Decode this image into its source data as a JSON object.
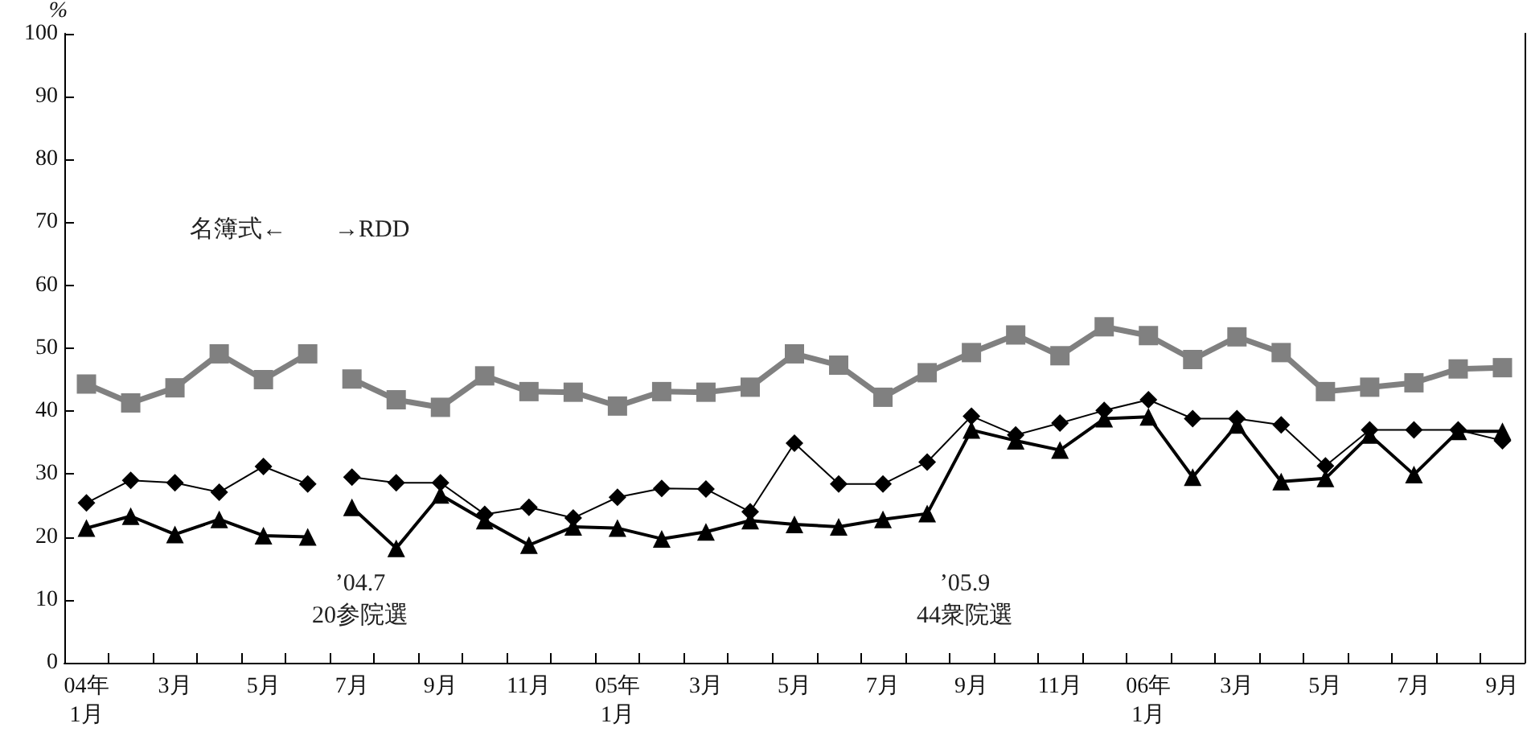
{
  "chart_data": {
    "type": "line",
    "ylabel": "%",
    "ylim": [
      0,
      100
    ],
    "yticks": [
      0,
      10,
      20,
      30,
      40,
      50,
      60,
      70,
      80,
      90,
      100
    ],
    "categories": [
      "04年\n1月",
      null,
      "3月",
      null,
      "5月",
      null,
      "7月",
      null,
      "9月",
      null,
      "11月",
      null,
      "05年\n1月",
      null,
      "3月",
      null,
      "5月",
      null,
      "7月",
      null,
      "9月",
      null,
      "11月",
      null,
      "06年\n1月",
      null,
      "3月",
      null,
      "5月",
      null,
      "7月",
      null,
      "9月"
    ],
    "series": [
      {
        "color": "#808080",
        "marker": "square",
        "values": [
          44.3,
          41.3,
          43.7,
          49.1,
          45.0,
          49.1,
          null,
          null,
          null,
          null,
          null,
          null,
          null,
          null,
          null,
          null,
          null,
          null,
          null,
          null,
          null,
          null,
          null,
          null,
          null,
          null,
          null,
          null,
          null,
          null,
          null,
          null,
          null
        ]
      },
      {
        "color": "#808080",
        "marker": "square",
        "values": [
          null,
          null,
          null,
          null,
          null,
          null,
          45.1,
          41.8,
          40.6,
          45.6,
          43.1,
          43.0,
          40.8,
          43.1,
          43.0,
          43.8,
          49.1,
          47.3,
          42.2,
          46.1,
          49.3,
          52.1,
          48.8,
          53.4,
          52.0,
          48.2,
          51.8,
          49.3,
          43.1,
          43.8,
          44.5,
          46.7,
          46.9
        ]
      },
      {
        "color": "#000000",
        "marker": "diamond",
        "values": [
          25.4,
          29.0,
          28.6,
          27.1,
          31.2,
          28.4,
          null,
          null,
          null,
          null,
          null,
          null,
          null,
          null,
          null,
          null,
          null,
          null,
          null,
          null,
          null,
          null,
          null,
          null,
          null,
          null,
          null,
          null,
          null,
          null,
          null,
          null,
          null
        ]
      },
      {
        "color": "#000000",
        "marker": "diamond",
        "values": [
          null,
          null,
          null,
          null,
          null,
          null,
          29.5,
          28.6,
          28.6,
          23.6,
          24.7,
          23.0,
          26.3,
          27.7,
          27.6,
          24.0,
          34.9,
          28.4,
          28.4,
          31.9,
          39.2,
          36.2,
          38.1,
          40.1,
          41.8,
          38.8,
          38.8,
          37.8,
          31.3,
          37.0,
          37.0,
          37.0,
          35.3
        ]
      },
      {
        "color": "#000000",
        "marker": "triangle",
        "values": [
          21.4,
          23.3,
          20.4,
          22.8,
          20.2,
          20.0,
          null,
          null,
          null,
          null,
          null,
          null,
          null,
          null,
          null,
          null,
          null,
          null,
          null,
          null,
          null,
          null,
          null,
          null,
          null,
          null,
          null,
          null,
          null,
          null,
          null,
          null,
          null
        ]
      },
      {
        "color": "#000000",
        "marker": "triangle",
        "values": [
          null,
          null,
          null,
          null,
          null,
          null,
          24.7,
          18.2,
          26.7,
          22.6,
          18.7,
          21.6,
          21.4,
          19.7,
          20.8,
          22.6,
          22.0,
          21.6,
          22.8,
          23.7,
          37.0,
          35.3,
          33.8,
          38.8,
          39.1,
          29.5,
          37.8,
          28.8,
          29.3,
          36.2,
          29.9,
          36.8,
          36.8
        ]
      }
    ],
    "annotations": [
      "名簿式←　　→RDD",
      "’04.7\n20参院選",
      "’05.9\n44衆院選"
    ]
  }
}
